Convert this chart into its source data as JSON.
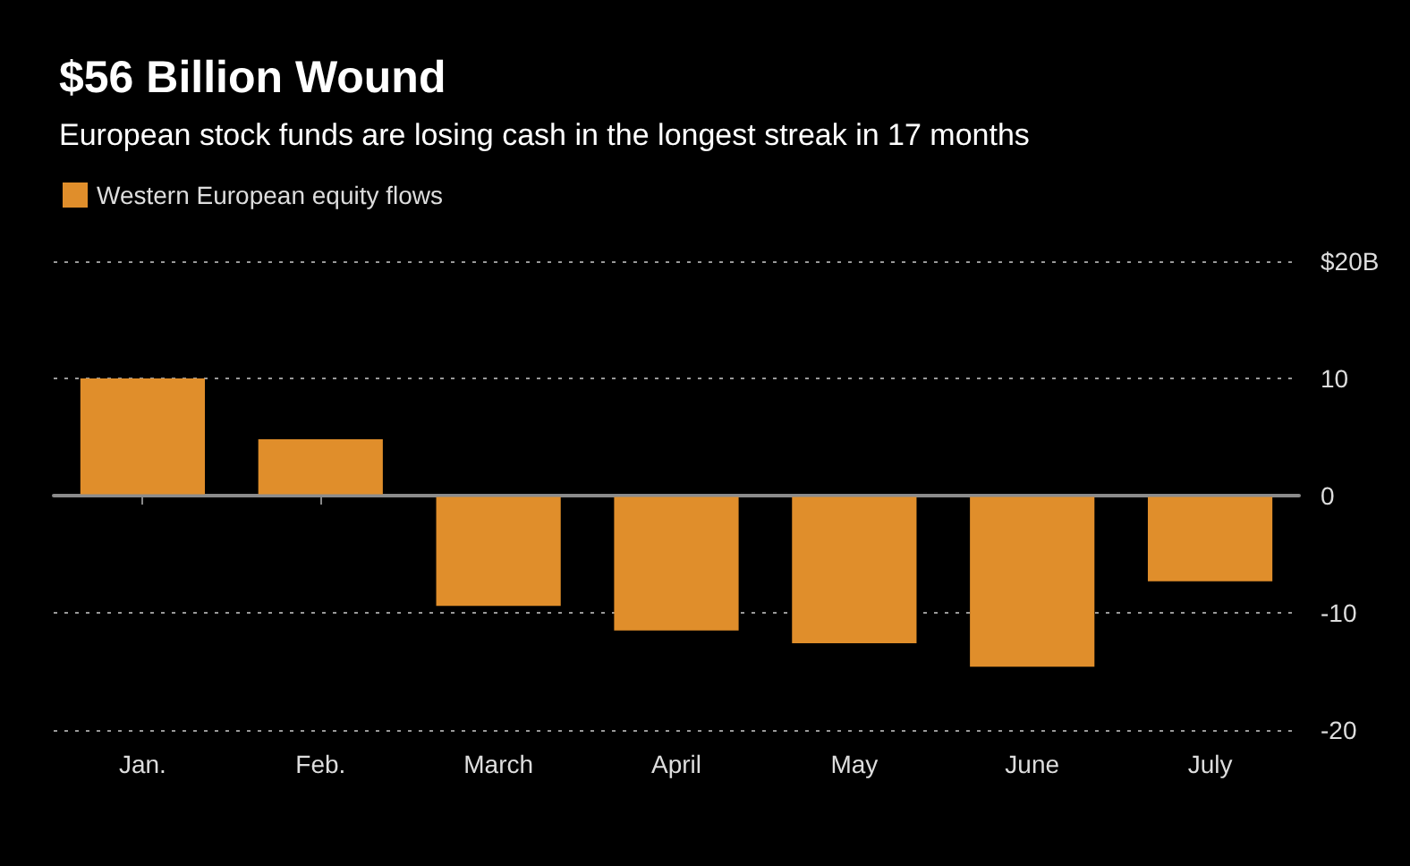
{
  "chart_data": {
    "type": "bar",
    "title": "$56 Billion Wound",
    "subtitle": "European stock funds are losing cash in the longest streak in 17 months",
    "categories": [
      "Jan.",
      "Feb.",
      "March",
      "April",
      "May",
      "June",
      "July"
    ],
    "series": [
      {
        "name": "Western European equity flows",
        "color": "#e08e2b",
        "values": [
          10,
          4.8,
          -9.4,
          -11.5,
          -12.6,
          -14.6,
          -7.3
        ]
      }
    ],
    "ylim": [
      -20,
      20
    ],
    "yticks": [
      -20,
      -10,
      0,
      10,
      {
        "value": 20,
        "label": "$20B"
      }
    ],
    "grid": "y",
    "legend": "top left",
    "ref_lines": [
      {
        "axis": "y",
        "value": 0,
        "color": "#8c8c8c",
        "line_style": "solid"
      }
    ]
  }
}
